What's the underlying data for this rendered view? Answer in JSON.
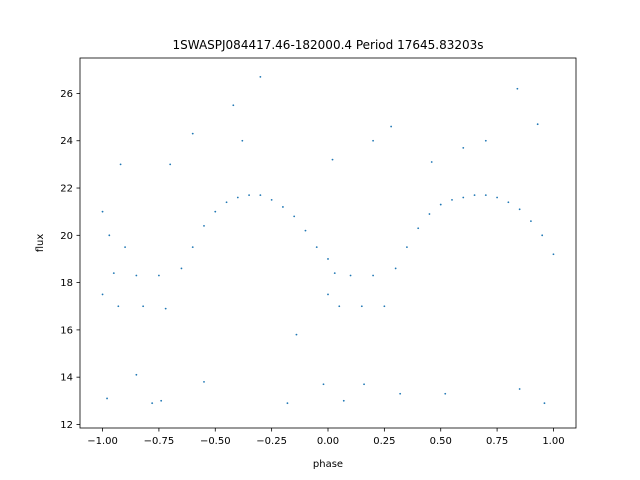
{
  "chart_data": {
    "type": "scatter",
    "title": "1SWASPJ084417.46-182000.4 Period 17645.83203s",
    "xlabel": "phase",
    "ylabel": "flux",
    "xlim": [
      -1.1,
      1.1
    ],
    "ylim": [
      11.85,
      27.5
    ],
    "xticks": [
      -1.0,
      -0.75,
      -0.5,
      -0.25,
      0.0,
      0.25,
      0.5,
      0.75,
      1.0
    ],
    "xtick_labels": [
      "−1.00",
      "−0.75",
      "−0.50",
      "−0.25",
      "0.00",
      "0.25",
      "0.50",
      "0.75",
      "1.00"
    ],
    "yticks": [
      12,
      14,
      16,
      18,
      20,
      22,
      24,
      26
    ],
    "ytick_labels": [
      "12",
      "14",
      "16",
      "18",
      "20",
      "22",
      "24",
      "26"
    ],
    "grid": false,
    "legend": "none",
    "marker_color": "#1f77b4",
    "series": [
      {
        "points_estimated": [
          [
            -1.0,
            21.0
          ],
          [
            -1.0,
            17.5
          ],
          [
            -0.97,
            20.0
          ],
          [
            -0.95,
            18.4
          ],
          [
            -0.93,
            17.0
          ],
          [
            -0.9,
            19.5
          ],
          [
            -0.85,
            18.3
          ],
          [
            -0.82,
            17.0
          ],
          [
            -0.75,
            18.3
          ],
          [
            -0.72,
            16.9
          ],
          [
            -0.65,
            18.6
          ],
          [
            -0.6,
            19.5
          ],
          [
            -0.55,
            20.4
          ],
          [
            -0.5,
            21.0
          ],
          [
            -0.45,
            21.4
          ],
          [
            -0.4,
            21.6
          ],
          [
            -0.35,
            21.7
          ],
          [
            -0.3,
            21.7
          ],
          [
            -0.25,
            21.5
          ],
          [
            -0.2,
            21.2
          ],
          [
            -0.15,
            20.8
          ],
          [
            -0.1,
            20.2
          ],
          [
            -0.05,
            19.5
          ],
          [
            0.0,
            19.0
          ],
          [
            0.0,
            17.5
          ],
          [
            0.03,
            18.4
          ],
          [
            0.05,
            17.0
          ],
          [
            0.1,
            18.3
          ],
          [
            0.15,
            17.0
          ],
          [
            0.2,
            18.3
          ],
          [
            0.25,
            17.0
          ],
          [
            0.3,
            18.6
          ],
          [
            0.35,
            19.5
          ],
          [
            0.4,
            20.3
          ],
          [
            0.45,
            20.9
          ],
          [
            0.5,
            21.3
          ],
          [
            0.55,
            21.5
          ],
          [
            0.6,
            21.6
          ],
          [
            0.65,
            21.7
          ],
          [
            0.7,
            21.7
          ],
          [
            0.75,
            21.6
          ],
          [
            0.8,
            21.4
          ],
          [
            0.85,
            21.1
          ],
          [
            0.9,
            20.6
          ],
          [
            0.95,
            20.0
          ],
          [
            1.0,
            19.2
          ],
          [
            -0.98,
            13.1
          ],
          [
            -0.85,
            14.1
          ],
          [
            -0.78,
            12.9
          ],
          [
            -0.74,
            13.0
          ],
          [
            -0.7,
            23.0
          ],
          [
            -0.6,
            24.3
          ],
          [
            -0.55,
            13.8
          ],
          [
            -0.42,
            25.5
          ],
          [
            -0.38,
            24.0
          ],
          [
            -0.3,
            26.7
          ],
          [
            -0.18,
            12.9
          ],
          [
            -0.14,
            15.8
          ],
          [
            -0.02,
            13.7
          ],
          [
            0.02,
            23.2
          ],
          [
            0.07,
            13.0
          ],
          [
            0.16,
            13.7
          ],
          [
            0.2,
            24.0
          ],
          [
            0.28,
            24.6
          ],
          [
            0.32,
            13.3
          ],
          [
            0.46,
            23.1
          ],
          [
            0.52,
            13.3
          ],
          [
            0.6,
            23.7
          ],
          [
            0.7,
            24.0
          ],
          [
            0.84,
            26.2
          ],
          [
            0.93,
            24.7
          ],
          [
            0.96,
            12.9
          ],
          [
            0.85,
            13.5
          ],
          [
            -0.92,
            23.0
          ]
        ]
      }
    ]
  }
}
